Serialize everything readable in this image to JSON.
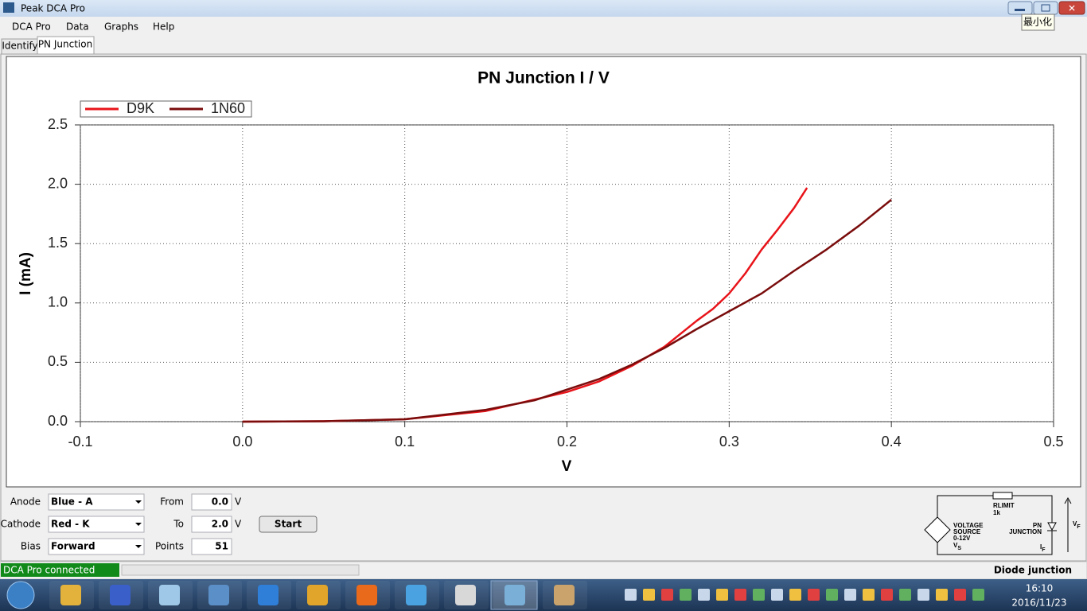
{
  "window": {
    "title": "Peak DCA Pro",
    "tooltip": "最小化"
  },
  "menu": [
    "DCA Pro",
    "Data",
    "Graphs",
    "Help"
  ],
  "tabs": [
    "Identify",
    "PN Junction"
  ],
  "chart_data": {
    "type": "line",
    "title": "PN Junction I / V",
    "xlabel": "V",
    "ylabel": "I (mA)",
    "series": [
      {
        "name": "D9K",
        "color": "#e8141a",
        "x": [
          0,
          0.05,
          0.1,
          0.15,
          0.2,
          0.22,
          0.24,
          0.26,
          0.28,
          0.29,
          0.3,
          0.31,
          0.32,
          0.33,
          0.34,
          0.348
        ],
        "values": [
          0,
          0.003,
          0.02,
          0.09,
          0.25,
          0.34,
          0.47,
          0.63,
          0.85,
          0.95,
          1.08,
          1.25,
          1.45,
          1.62,
          1.8,
          1.97
        ]
      },
      {
        "name": "1N60",
        "color": "#7a0c0c",
        "x": [
          0,
          0.05,
          0.1,
          0.15,
          0.18,
          0.2,
          0.22,
          0.24,
          0.26,
          0.28,
          0.3,
          0.32,
          0.34,
          0.36,
          0.38,
          0.4
        ],
        "values": [
          0,
          0.003,
          0.02,
          0.1,
          0.18,
          0.27,
          0.36,
          0.48,
          0.62,
          0.78,
          0.93,
          1.08,
          1.27,
          1.45,
          1.65,
          1.87
        ]
      }
    ],
    "xlim": [
      -0.1,
      0.5
    ],
    "ylim": [
      0,
      2.5
    ],
    "xticks": [
      -0.1,
      {
        "value": 0,
        "label": "0.0"
      },
      0.1,
      0.2,
      0.3,
      0.4,
      0.5
    ],
    "yticks": [
      {
        "value": 0,
        "label": "0.0"
      },
      0.5,
      {
        "value": 1,
        "label": "1.0"
      },
      1.5,
      {
        "value": 2,
        "label": "2.0"
      },
      2.5
    ],
    "grid": true,
    "legend": "top-left"
  },
  "controls": {
    "anode": {
      "label": "Anode",
      "value": "Blue - A"
    },
    "cathode": {
      "label": "Cathode",
      "value": "Red - K"
    },
    "bias": {
      "label": "Bias",
      "value": "Forward"
    },
    "from": {
      "label": "From",
      "value": "0.0",
      "unit": "V"
    },
    "to": {
      "label": "To",
      "value": "2.0",
      "unit": "V"
    },
    "points": {
      "label": "Points",
      "value": "51"
    },
    "start": "Start"
  },
  "status": {
    "text": "DCA Pro connected",
    "mode": "Diode junction"
  },
  "circuit": {
    "rlimit": "RLIMIT",
    "r_value": "1k",
    "source": [
      "VOLTAGE",
      "SOURCE",
      "0-12V"
    ],
    "vs": {
      "main": "V",
      "sub": "S"
    },
    "junction": [
      "PN",
      "JUNCTION"
    ],
    "if": {
      "main": "I",
      "sub": "F"
    },
    "vf": {
      "main": "V",
      "sub": "F"
    }
  },
  "taskbar": {
    "time": "16:10",
    "date": "2016/11/23"
  }
}
